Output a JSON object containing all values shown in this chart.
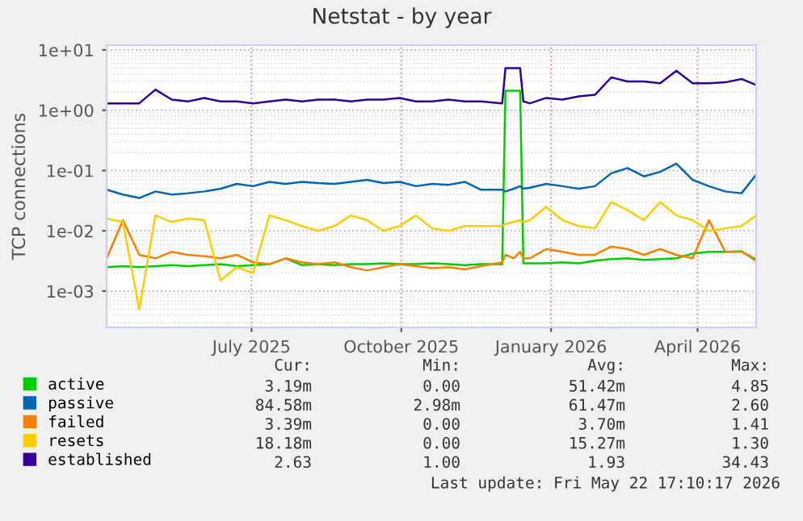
{
  "chart_data": {
    "type": "line",
    "title": "Netstat - by year",
    "ylabel": "TCP connections",
    "log": "y",
    "grid": true,
    "legend": "bottom",
    "marker": "none",
    "line_style": "solid",
    "xlim": [
      "2025-04-18",
      "2026-05-22"
    ],
    "xticks": [
      {
        "value": "2025-07-16",
        "label": "July 2025"
      },
      {
        "value": "2025-10-16",
        "label": "October 2025"
      },
      {
        "value": "2026-01-16",
        "label": "January 2026"
      },
      {
        "value": "2026-04-16",
        "label": "April 2026"
      }
    ],
    "ylim": [
      0.00025,
      12
    ],
    "yticks": [
      {
        "value": 0.001,
        "label": "1e-03"
      },
      {
        "value": 0.01,
        "label": "1e-02"
      },
      {
        "value": 0.1,
        "label": "1e-01"
      },
      {
        "value": 1,
        "label": "1e+00"
      },
      {
        "value": 10,
        "label": "1e+01"
      }
    ],
    "x": [
      "2025-04-18",
      "2025-04-28",
      "2025-05-08",
      "2025-05-18",
      "2025-05-28",
      "2025-06-07",
      "2025-06-17",
      "2025-06-27",
      "2025-07-07",
      "2025-07-17",
      "2025-07-27",
      "2025-08-06",
      "2025-08-16",
      "2025-08-26",
      "2025-09-05",
      "2025-09-15",
      "2025-09-25",
      "2025-10-05",
      "2025-10-15",
      "2025-10-25",
      "2025-11-04",
      "2025-11-14",
      "2025-11-24",
      "2025-12-04",
      "2025-12-17",
      "2025-12-19",
      "2025-12-24",
      "2025-12-28",
      "2025-12-30",
      "2026-01-03",
      "2026-01-13",
      "2026-01-23",
      "2026-02-02",
      "2026-02-12",
      "2026-02-22",
      "2026-03-04",
      "2026-03-14",
      "2026-03-24",
      "2026-04-03",
      "2026-04-13",
      "2026-04-23",
      "2026-05-03",
      "2026-05-13",
      "2026-05-22"
    ],
    "series": [
      {
        "name": "active",
        "color": "#00cc00",
        "values": [
          0.0025,
          0.0026,
          0.0025,
          0.0026,
          0.0027,
          0.0026,
          0.0027,
          0.0028,
          0.0026,
          0.0027,
          0.0028,
          0.0035,
          0.0027,
          0.0028,
          0.0027,
          0.0028,
          0.0028,
          0.0029,
          0.0028,
          0.0028,
          0.0029,
          0.0028,
          0.0027,
          0.0028,
          0.0028,
          2.1,
          2.1,
          2.1,
          0.0029,
          0.0029,
          0.0029,
          0.003,
          0.0029,
          0.0032,
          0.0034,
          0.0035,
          0.0033,
          0.0034,
          0.0035,
          0.0042,
          0.0045,
          0.0045,
          0.0046,
          0.00319
        ]
      },
      {
        "name": "passive",
        "color": "#0066b3",
        "values": [
          0.048,
          0.04,
          0.035,
          0.045,
          0.04,
          0.042,
          0.045,
          0.05,
          0.06,
          0.055,
          0.065,
          0.06,
          0.065,
          0.062,
          0.06,
          0.065,
          0.07,
          0.062,
          0.065,
          0.055,
          0.06,
          0.058,
          0.065,
          0.048,
          0.048,
          0.045,
          0.05,
          0.055,
          0.05,
          0.052,
          0.06,
          0.055,
          0.05,
          0.055,
          0.09,
          0.11,
          0.08,
          0.095,
          0.13,
          0.07,
          0.055,
          0.045,
          0.042,
          0.085
        ]
      },
      {
        "name": "failed",
        "color": "#ff8000",
        "values": [
          0.0035,
          0.015,
          0.004,
          0.0035,
          0.0045,
          0.004,
          0.0038,
          0.0035,
          0.004,
          0.003,
          0.0028,
          0.0035,
          0.003,
          0.0028,
          0.003,
          0.0025,
          0.0022,
          0.0025,
          0.0028,
          0.0026,
          0.0024,
          0.0025,
          0.0023,
          0.0026,
          0.003,
          0.004,
          0.0035,
          0.0045,
          0.0035,
          0.0035,
          0.005,
          0.0045,
          0.004,
          0.004,
          0.0055,
          0.005,
          0.004,
          0.005,
          0.004,
          0.0035,
          0.015,
          0.0045,
          0.0045,
          0.00339
        ]
      },
      {
        "name": "resets",
        "color": "#ffcc00",
        "values": [
          0.016,
          0.014,
          0.0005,
          0.018,
          0.014,
          0.016,
          0.015,
          0.0015,
          0.0025,
          0.002,
          0.018,
          0.015,
          0.012,
          0.01,
          0.012,
          0.018,
          0.015,
          0.01,
          0.012,
          0.018,
          0.011,
          0.01,
          0.012,
          0.012,
          0.012,
          0.013,
          0.014,
          0.015,
          0.014,
          0.015,
          0.025,
          0.015,
          0.012,
          0.011,
          0.03,
          0.022,
          0.015,
          0.03,
          0.018,
          0.015,
          0.01,
          0.011,
          0.012,
          0.018
        ]
      },
      {
        "name": "established",
        "color": "#330099",
        "values": [
          1.3,
          1.3,
          1.3,
          2.2,
          1.5,
          1.4,
          1.6,
          1.4,
          1.4,
          1.3,
          1.4,
          1.5,
          1.4,
          1.5,
          1.5,
          1.4,
          1.5,
          1.5,
          1.6,
          1.4,
          1.4,
          1.5,
          1.4,
          1.4,
          1.3,
          5,
          5,
          5,
          1.4,
          1.3,
          1.6,
          1.5,
          1.7,
          1.8,
          3.5,
          3.0,
          3.0,
          2.8,
          4.5,
          2.8,
          2.8,
          2.9,
          3.3,
          2.63
        ]
      }
    ],
    "annotations": [
      "Cur:",
      "Min:",
      "Avg:",
      "Max:",
      "3.19m",
      "0.00",
      "51.42m",
      "4.85",
      "84.58m",
      "2.98m",
      "61.47m",
      "2.60",
      "3.39m",
      "0.00",
      "3.70m",
      "1.41",
      "18.18m",
      "0.00",
      "15.27m",
      "1.30",
      "2.63",
      "1.00",
      "1.93",
      "34.43",
      "Last update: Fri May 22 17:10:17 2026"
    ]
  }
}
